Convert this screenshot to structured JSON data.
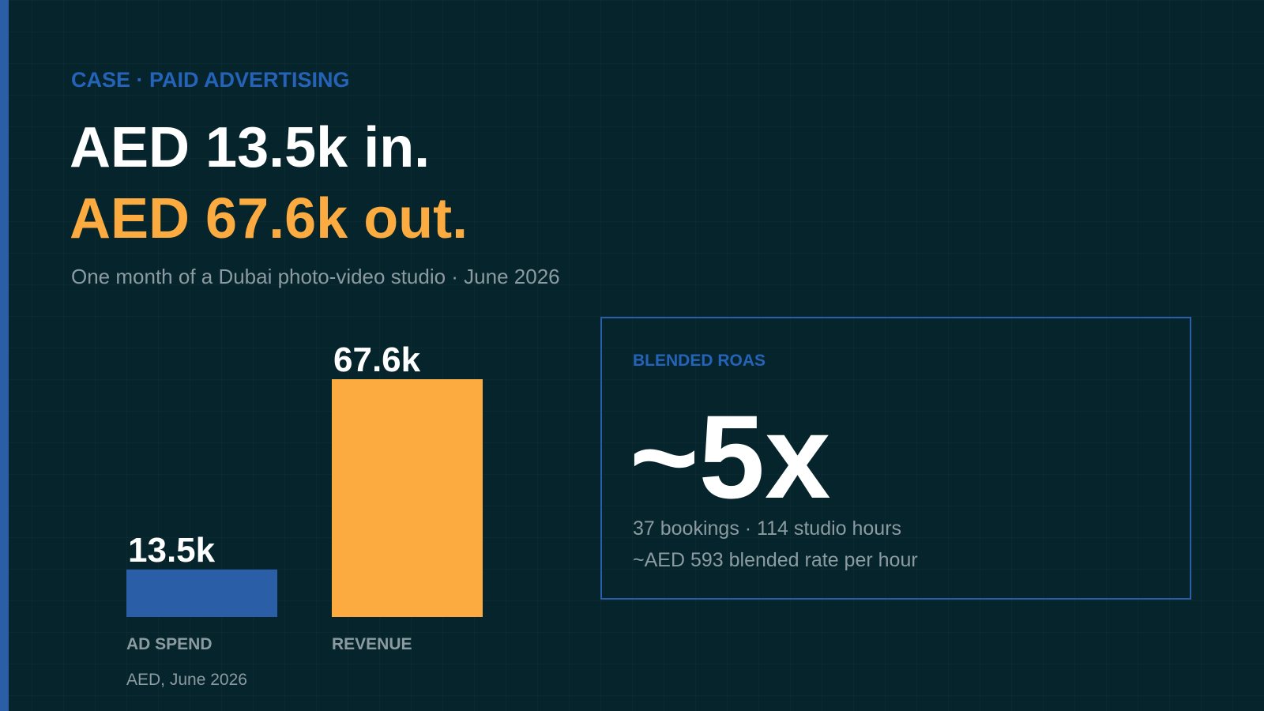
{
  "header": {
    "kicker": "CASE · PAID ADVERTISING",
    "title_line_1": "AED 13.5k in.",
    "title_line_2": "AED 67.6k out.",
    "subtitle": "One month of a Dubai photo-video studio · June 2026"
  },
  "chart_data": {
    "type": "bar",
    "categories": [
      "AD SPEND",
      "REVENUE"
    ],
    "values": [
      13.5,
      67.6
    ],
    "value_labels": [
      "13.5k",
      "67.6k"
    ],
    "colors": [
      "#2a5fa8",
      "#fbab40"
    ],
    "note": "AED, June 2026"
  },
  "card": {
    "label": "BLENDED ROAS",
    "headline": "~5x",
    "line_1": "37 bookings · 114 studio hours",
    "line_2": "~AED 593 blended rate per hour"
  }
}
